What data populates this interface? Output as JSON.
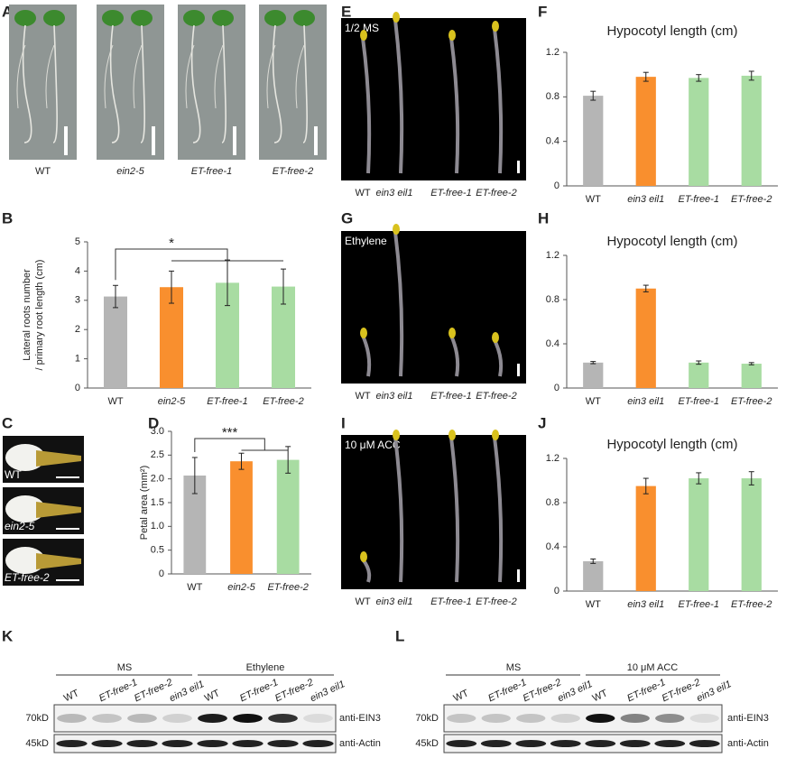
{
  "panel_labels": [
    "A",
    "B",
    "C",
    "D",
    "E",
    "F",
    "G",
    "H",
    "I",
    "J",
    "K",
    "L"
  ],
  "panel_a": {
    "captions": [
      "WT",
      "ein2-5",
      "ET-free-1",
      "ET-free-2"
    ]
  },
  "panel_c": {
    "captions": [
      "WT",
      "ein2-5",
      "ET-free-2"
    ]
  },
  "panel_e": {
    "condition": "1/2 MS",
    "captions": [
      "WT",
      "ein3 eil1",
      "ET-free-1",
      "ET-free-2"
    ]
  },
  "panel_g": {
    "condition": "Ethylene",
    "captions": [
      "WT",
      "ein3 eil1",
      "ET-free-1",
      "ET-free-2"
    ]
  },
  "panel_i": {
    "condition": "10 μM ACC",
    "captions": [
      "WT",
      "ein3 eil1",
      "ET-free-1",
      "ET-free-2"
    ]
  },
  "panel_k": {
    "groups": [
      "MS",
      "Ethylene"
    ],
    "lanes": [
      "WT",
      "ET-free-1",
      "ET-free-2",
      "ein3 eil1",
      "WT",
      "ET-free-1",
      "ET-free-2",
      "ein3 eil1"
    ],
    "markers": [
      "70kD",
      "45kD"
    ],
    "antibodies": [
      "anti-EIN3",
      "anti-Actin"
    ]
  },
  "panel_l": {
    "groups": [
      "MS",
      "10 μM ACC"
    ],
    "lanes": [
      "WT",
      "ET-free-1",
      "ET-free-2",
      "ein3 eil1",
      "WT",
      "ET-free-1",
      "ET-free-2",
      "ein3 eil1"
    ],
    "markers": [
      "70kD",
      "45kD"
    ],
    "antibodies": [
      "anti-EIN3",
      "anti-Actin"
    ]
  },
  "chart_data": [
    {
      "type": "bar",
      "ylabel": [
        "Lateral roots number",
        "/ primary root length (cm)"
      ],
      "significance": "*",
      "categories": [
        "WT",
        "ein2-5",
        "ET-free-1",
        "ET-free-2"
      ],
      "values": [
        3.13,
        3.45,
        3.6,
        3.47
      ],
      "errors": [
        0.38,
        0.55,
        0.78,
        0.6
      ],
      "colors": [
        "#b5b5b5",
        "#f98f2e",
        "#a8dca2",
        "#a8dca2"
      ],
      "ylim": [
        0,
        5
      ],
      "yticks": [
        0,
        1,
        2,
        3,
        4,
        5
      ]
    },
    {
      "type": "bar",
      "ylabel": [
        "Petal area (mm²)"
      ],
      "significance": "***",
      "categories": [
        "WT",
        "ein2-5",
        "ET-free-2"
      ],
      "values": [
        2.07,
        2.37,
        2.4
      ],
      "errors": [
        0.38,
        0.17,
        0.28
      ],
      "colors": [
        "#b5b5b5",
        "#f98f2e",
        "#a8dca2"
      ],
      "ylim": [
        0,
        3
      ],
      "yticks": [
        0,
        0.5,
        {
          "value": 1,
          "label": "1.0"
        },
        1.5,
        {
          "value": 2,
          "label": "2.0"
        },
        2.5,
        {
          "value": 3,
          "label": "3.0"
        }
      ]
    },
    {
      "type": "bar",
      "title": "Hypocotyl length (cm)",
      "categories": [
        "WT",
        "ein3 eil1",
        "ET-free-1",
        "ET-free-2"
      ],
      "values": [
        0.81,
        0.98,
        0.97,
        0.99
      ],
      "errors": [
        0.04,
        0.04,
        0.03,
        0.04
      ],
      "colors": [
        "#b5b5b5",
        "#f98f2e",
        "#a8dca2",
        "#a8dca2"
      ],
      "ylim": [
        0,
        1.2
      ],
      "yticks": [
        0,
        0.4,
        0.8,
        1.2
      ]
    },
    {
      "type": "bar",
      "title": "Hypocotyl length (cm)",
      "categories": [
        "WT",
        "ein3 eil1",
        "ET-free-1",
        "ET-free-2"
      ],
      "values": [
        0.23,
        0.9,
        0.23,
        0.22
      ],
      "errors": [
        0.01,
        0.03,
        0.015,
        0.01
      ],
      "colors": [
        "#b5b5b5",
        "#f98f2e",
        "#a8dca2",
        "#a8dca2"
      ],
      "ylim": [
        0,
        1.2
      ],
      "yticks": [
        0,
        0.4,
        0.8,
        1.2
      ]
    },
    {
      "type": "bar",
      "title": "Hypocotyl length (cm)",
      "categories": [
        "WT",
        "ein3 eil1",
        "ET-free-1",
        "ET-free-2"
      ],
      "values": [
        0.27,
        0.95,
        1.02,
        1.02
      ],
      "errors": [
        0.02,
        0.07,
        0.05,
        0.06
      ],
      "colors": [
        "#b5b5b5",
        "#f98f2e",
        "#a8dca2",
        "#a8dca2"
      ],
      "ylim": [
        0,
        1.2
      ],
      "yticks": [
        0,
        0.4,
        0.8,
        1.2
      ]
    }
  ]
}
